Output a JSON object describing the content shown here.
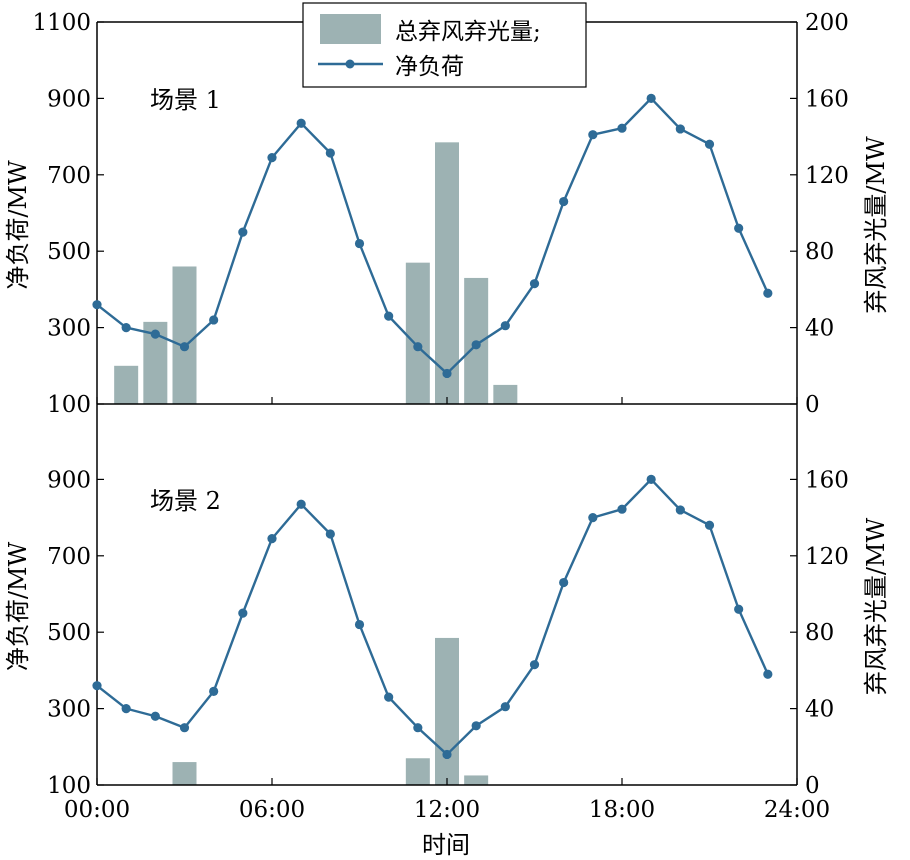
{
  "chart_data": {
    "type": "bar+line",
    "xlabel": "时间",
    "x_ticks": [
      "00:00",
      "06:00",
      "12:00",
      "18:00",
      "24:00"
    ],
    "hours": [
      0,
      1,
      2,
      3,
      4,
      5,
      6,
      7,
      8,
      9,
      10,
      11,
      12,
      13,
      14,
      15,
      16,
      17,
      18,
      19,
      20,
      21,
      22,
      23
    ],
    "legend": {
      "bar": "总弃风弃光量;",
      "line": "净负荷",
      "position": "top-center"
    },
    "panels": [
      {
        "label": "场景 1",
        "ylabel_left": "净负荷/MW",
        "ylabel_right": "弃风弃光量/MW",
        "ylim_left": [
          100,
          1100
        ],
        "yticks_left": [
          100,
          300,
          500,
          700,
          900,
          1100
        ],
        "ylim_right": [
          0,
          200
        ],
        "yticks_right": [
          0,
          40,
          80,
          120,
          160,
          200
        ],
        "net_load": [
          360,
          300,
          283,
          250,
          320,
          550,
          745,
          835,
          757,
          520,
          330,
          250,
          180,
          255,
          305,
          415,
          630,
          805,
          822,
          900,
          820,
          780,
          560,
          390
        ],
        "curtailment_hours": [
          1,
          2,
          3,
          11,
          12,
          13,
          14
        ],
        "curtailment": [
          20,
          43,
          72,
          74,
          137,
          66,
          10
        ]
      },
      {
        "label": "场景 2",
        "ylabel_left": "净负荷/MW",
        "ylabel_right": "弃风弃光量/MW",
        "ylim_left": [
          100,
          1000
        ],
        "yticks_left": [
          100,
          300,
          500,
          700,
          900
        ],
        "ylim_right": [
          0,
          180
        ],
        "yticks_right": [
          0,
          40,
          80,
          120,
          160
        ],
        "net_load": [
          360,
          300,
          280,
          250,
          345,
          550,
          745,
          835,
          757,
          520,
          330,
          250,
          180,
          255,
          305,
          415,
          630,
          800,
          822,
          900,
          820,
          780,
          560,
          390
        ],
        "curtailment_hours": [
          3,
          11,
          12,
          13
        ],
        "curtailment": [
          12,
          14,
          77,
          5
        ]
      }
    ]
  }
}
